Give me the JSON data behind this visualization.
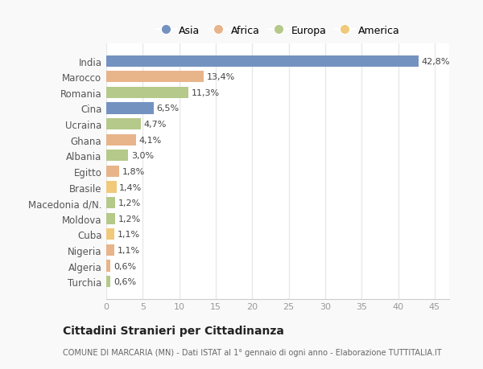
{
  "categories": [
    "India",
    "Marocco",
    "Romania",
    "Cina",
    "Ucraina",
    "Ghana",
    "Albania",
    "Egitto",
    "Brasile",
    "Macedonia d/N.",
    "Moldova",
    "Cuba",
    "Nigeria",
    "Algeria",
    "Turchia"
  ],
  "values": [
    42.8,
    13.4,
    11.3,
    6.5,
    4.7,
    4.1,
    3.0,
    1.8,
    1.4,
    1.2,
    1.2,
    1.1,
    1.1,
    0.6,
    0.6
  ],
  "labels": [
    "42,8%",
    "13,4%",
    "11,3%",
    "6,5%",
    "4,7%",
    "4,1%",
    "3,0%",
    "1,8%",
    "1,4%",
    "1,2%",
    "1,2%",
    "1,1%",
    "1,1%",
    "0,6%",
    "0,6%"
  ],
  "colors": [
    "#7392c0",
    "#e8b48a",
    "#b5c98a",
    "#7392c0",
    "#b5c98a",
    "#e8b48a",
    "#b5c98a",
    "#e8b48a",
    "#f0c97a",
    "#b5c98a",
    "#b5c98a",
    "#f0c97a",
    "#e8b48a",
    "#e8b48a",
    "#b5c98a"
  ],
  "legend_labels": [
    "Asia",
    "Africa",
    "Europa",
    "America"
  ],
  "legend_colors": [
    "#7392c0",
    "#e8b48a",
    "#b5c98a",
    "#f0c97a"
  ],
  "title": "Cittadini Stranieri per Cittadinanza",
  "subtitle": "COMUNE DI MARCARIA (MN) - Dati ISTAT al 1° gennaio di ogni anno - Elaborazione TUTTITALIA.IT",
  "xlim": [
    0,
    47
  ],
  "xticks": [
    0,
    5,
    10,
    15,
    20,
    25,
    30,
    35,
    40,
    45
  ],
  "plot_bg": "#ffffff",
  "fig_bg": "#f9f9f9",
  "grid_color": "#e8e8e8",
  "bar_height": 0.72,
  "label_fontsize": 8,
  "ytick_fontsize": 8.5,
  "xtick_fontsize": 8
}
